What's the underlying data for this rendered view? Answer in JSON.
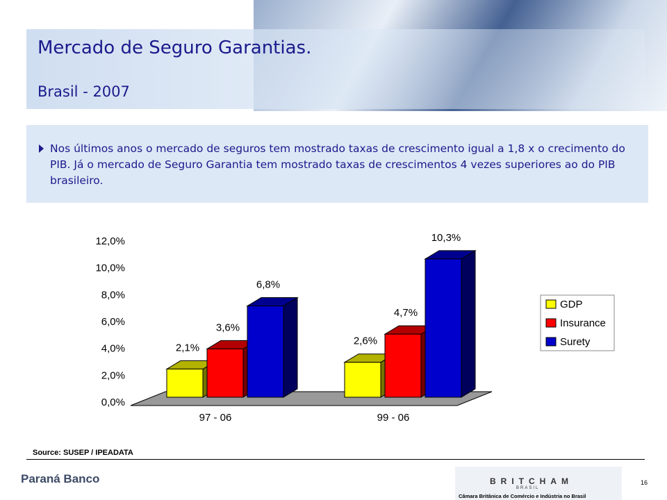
{
  "header": {
    "title": "Mercado de Seguro Garantias.",
    "subtitle": "Brasil - 2007"
  },
  "bullet": "Nos últimos anos o mercado de seguros tem mostrado taxas de crescimento igual a 1,8 x o crecimento do PIB. Já o mercado de Seguro Garantia tem mostrado taxas de crescimentos 4 vezes superiores ao do PIB brasileiro.",
  "chart_data": {
    "type": "bar3d",
    "categories": [
      "97 - 06",
      "99 - 06"
    ],
    "series": [
      {
        "name": "GDP",
        "color": "#ffff00",
        "values": [
          2.1,
          2.6
        ],
        "value_labels": [
          "2,1%",
          "2,6%"
        ]
      },
      {
        "name": "Insurance",
        "color": "#ff0000",
        "values": [
          3.6,
          4.7
        ],
        "value_labels": [
          "3,6%",
          "4,7%"
        ]
      },
      {
        "name": "Surety",
        "color": "#0000cc",
        "values": [
          6.8,
          10.3
        ],
        "value_labels": [
          "6,8%",
          "10,3%"
        ]
      }
    ],
    "ylim": [
      0,
      12
    ],
    "yticks": [
      {
        "value": 0,
        "label": "0,0%"
      },
      {
        "value": 2,
        "label": "2,0%"
      },
      {
        "value": 4,
        "label": "4,0%"
      },
      {
        "value": 6,
        "label": "6,0%"
      },
      {
        "value": 8,
        "label": "8,0%"
      },
      {
        "value": 10,
        "label": "10,0%"
      },
      {
        "value": 12,
        "label": "12,0%"
      }
    ],
    "legend": "right"
  },
  "source": "Source: SUSEP / IPEADATA",
  "footer": {
    "logo": "Paraná Banco",
    "britcham": "BRITCHAM",
    "britcham_sub": "BRASIL",
    "britcham_caption": "Câmara Britânica de Comércio e Indústria no Brasil",
    "page": "16"
  }
}
